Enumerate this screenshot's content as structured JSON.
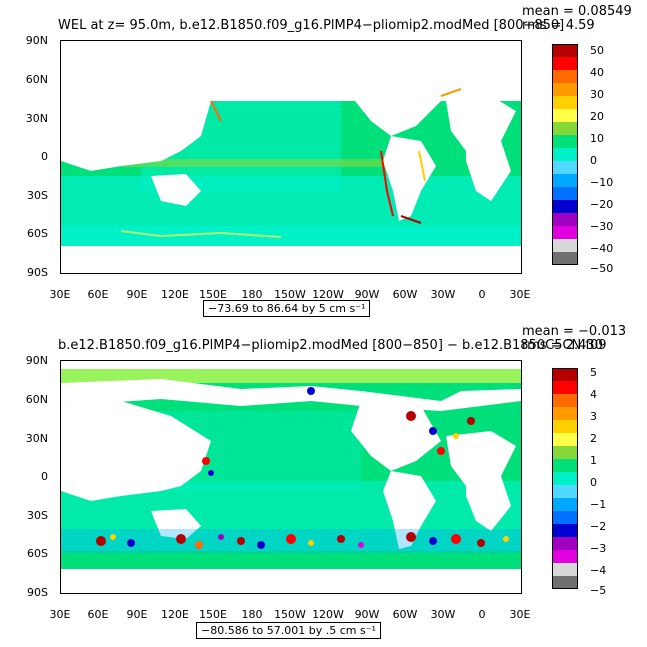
{
  "panels": [
    {
      "title": "WEL at z=   95.0m, b.e12.B1850.f09_g16.PlMP4−pliomip2.modMed [800−850]",
      "mean": "mean = 0.08549",
      "rms": "rms = 4.59",
      "range": "−73.69 to 86.64 by 5 cm s⁻¹",
      "colorbar_labels": [
        "50",
        "40",
        "30",
        "20",
        "10",
        "0",
        "−10",
        "−20",
        "−30",
        "−40",
        "−50"
      ]
    },
    {
      "title": "b.e12.B1850.f09_g16.PlMP4−pliomip2.modMed [800−850]  −  b.e12.B1850C5CN.f09",
      "mean": "mean = −0.013",
      "rms": "rms = 2.430",
      "range": "−80.586 to 57.001 by .5 cm s⁻¹",
      "colorbar_labels": [
        "5",
        "4",
        "3",
        "2",
        "1",
        "0",
        "−1",
        "−2",
        "−3",
        "−4",
        "−5"
      ]
    }
  ],
  "axes": {
    "y_labels": [
      "90N",
      "60N",
      "30N",
      "0",
      "30S",
      "60S",
      "90S"
    ],
    "x_labels": [
      "30E",
      "60E",
      "90E",
      "120E",
      "150E",
      "180",
      "150W",
      "120W",
      "90W",
      "60W",
      "30W",
      "0",
      "30E"
    ]
  },
  "colorbar_colors": [
    "#b40000",
    "#ff0000",
    "#ff6a00",
    "#ff9a00",
    "#ffd000",
    "#ffff4a",
    "#86d83a",
    "#00e07a",
    "#00f0c8",
    "#50d8ff",
    "#00a8ff",
    "#0070ff",
    "#0000d0",
    "#a000c0",
    "#e000e0",
    "#d8d8d8",
    "#707070"
  ]
}
